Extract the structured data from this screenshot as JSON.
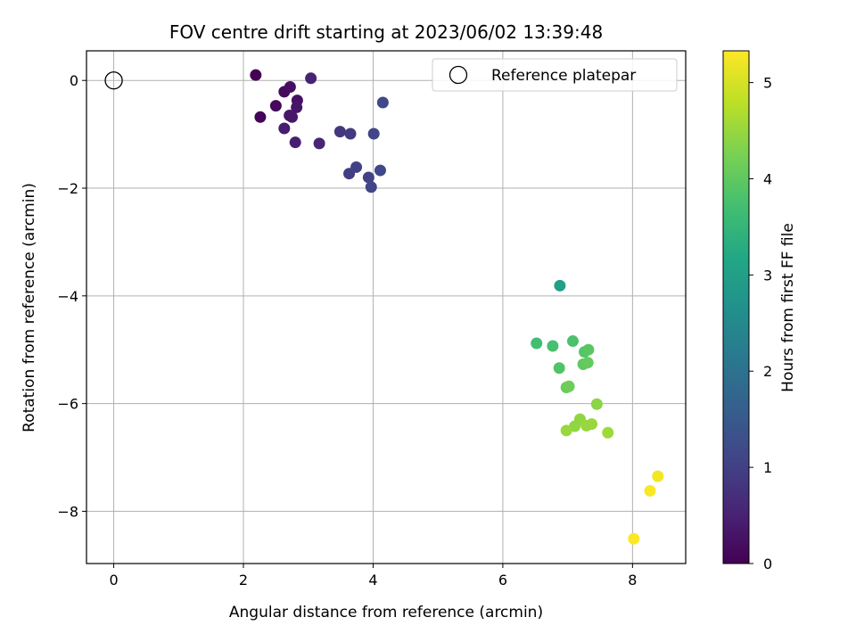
{
  "chart_data": {
    "type": "scatter",
    "title": "FOV centre drift starting at 2023/06/02 13:39:48",
    "xlabel": "Angular distance from reference (arcmin)",
    "ylabel": "Rotation from reference (arcmin)",
    "xlim": [
      -0.42,
      8.82
    ],
    "ylim": [
      -8.97,
      0.55
    ],
    "xticks": [
      0,
      2,
      4,
      6,
      8
    ],
    "yticks": [
      0,
      -2,
      -4,
      -6,
      -8
    ],
    "grid": true,
    "legend": {
      "placement": "top-right",
      "entries": [
        "Reference platepar"
      ]
    },
    "reference_point": {
      "x": 0,
      "y": 0,
      "label": "Reference platepar"
    },
    "colorbar": {
      "label": "Hours from first FF file",
      "colormap": "viridis",
      "range": [
        0,
        5.33
      ],
      "ticks": [
        0,
        1,
        2,
        3,
        4,
        5
      ]
    },
    "points": [
      {
        "x": 2.19,
        "y": 0.1,
        "c": 0.0
      },
      {
        "x": 2.26,
        "y": -0.68,
        "c": 0.05
      },
      {
        "x": 2.5,
        "y": -0.47,
        "c": 0.1
      },
      {
        "x": 2.63,
        "y": -0.21,
        "c": 0.15
      },
      {
        "x": 2.72,
        "y": -0.12,
        "c": 0.2
      },
      {
        "x": 2.83,
        "y": -0.37,
        "c": 0.25
      },
      {
        "x": 2.82,
        "y": -0.5,
        "c": 0.3
      },
      {
        "x": 2.71,
        "y": -0.65,
        "c": 0.35
      },
      {
        "x": 2.75,
        "y": -0.68,
        "c": 0.35
      },
      {
        "x": 2.63,
        "y": -0.89,
        "c": 0.4
      },
      {
        "x": 2.8,
        "y": -1.15,
        "c": 0.45
      },
      {
        "x": 3.04,
        "y": 0.04,
        "c": 0.5
      },
      {
        "x": 3.17,
        "y": -1.17,
        "c": 0.55
      },
      {
        "x": 3.49,
        "y": -0.95,
        "c": 0.85
      },
      {
        "x": 3.65,
        "y": -0.99,
        "c": 0.9
      },
      {
        "x": 3.63,
        "y": -1.73,
        "c": 0.95
      },
      {
        "x": 3.74,
        "y": -1.61,
        "c": 1.0
      },
      {
        "x": 3.93,
        "y": -1.8,
        "c": 1.05
      },
      {
        "x": 3.97,
        "y": -1.98,
        "c": 1.1
      },
      {
        "x": 4.01,
        "y": -0.99,
        "c": 1.1
      },
      {
        "x": 4.11,
        "y": -1.67,
        "c": 1.15
      },
      {
        "x": 4.15,
        "y": -0.41,
        "c": 1.15
      },
      {
        "x": 6.88,
        "y": -3.81,
        "c": 3.0
      },
      {
        "x": 6.52,
        "y": -4.88,
        "c": 3.7
      },
      {
        "x": 6.77,
        "y": -4.93,
        "c": 3.75
      },
      {
        "x": 7.08,
        "y": -4.84,
        "c": 3.8
      },
      {
        "x": 6.87,
        "y": -5.34,
        "c": 3.85
      },
      {
        "x": 7.26,
        "y": -5.04,
        "c": 3.9
      },
      {
        "x": 7.32,
        "y": -5.0,
        "c": 3.95
      },
      {
        "x": 7.24,
        "y": -5.27,
        "c": 4.0
      },
      {
        "x": 7.31,
        "y": -5.24,
        "c": 4.05
      },
      {
        "x": 6.98,
        "y": -5.7,
        "c": 4.1
      },
      {
        "x": 7.02,
        "y": -5.68,
        "c": 4.15
      },
      {
        "x": 7.45,
        "y": -6.01,
        "c": 4.4
      },
      {
        "x": 7.19,
        "y": -6.29,
        "c": 4.45
      },
      {
        "x": 7.11,
        "y": -6.42,
        "c": 4.45
      },
      {
        "x": 7.29,
        "y": -6.41,
        "c": 4.5
      },
      {
        "x": 7.37,
        "y": -6.38,
        "c": 4.5
      },
      {
        "x": 6.98,
        "y": -6.5,
        "c": 4.5
      },
      {
        "x": 7.62,
        "y": -6.54,
        "c": 4.55
      },
      {
        "x": 8.39,
        "y": -7.35,
        "c": 5.25
      },
      {
        "x": 8.27,
        "y": -7.62,
        "c": 5.3
      },
      {
        "x": 8.02,
        "y": -8.51,
        "c": 5.33
      }
    ]
  }
}
